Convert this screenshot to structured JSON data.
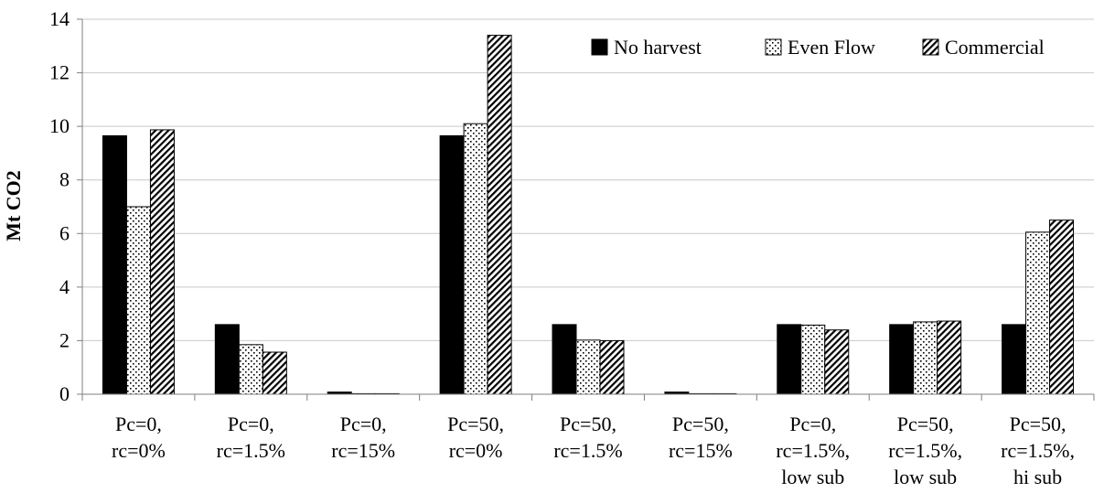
{
  "chart_data": {
    "type": "bar",
    "title": "",
    "xlabel": "",
    "ylabel": "Mt CO2",
    "ylim": [
      0,
      14
    ],
    "yticks": [
      0,
      2,
      4,
      6,
      8,
      10,
      12,
      14
    ],
    "grid": true,
    "legend_position": "top-right",
    "categories": [
      [
        "Pc=0,",
        "rc=0%"
      ],
      [
        "Pc=0,",
        "rc=1.5%"
      ],
      [
        "Pc=0,",
        "rc=15%"
      ],
      [
        "Pc=50,",
        "rc=0%"
      ],
      [
        "Pc=50,",
        "rc=1.5%"
      ],
      [
        "Pc=50,",
        "rc=15%"
      ],
      [
        "Pc=0,",
        "rc=1.5%,",
        "low sub"
      ],
      [
        "Pc=50,",
        "rc=1.5%,",
        "low sub"
      ],
      [
        "Pc=50,",
        "rc=1.5%,",
        "hi sub"
      ]
    ],
    "series": [
      {
        "name": "No harvest",
        "pattern": "solid",
        "color": "#000000",
        "values": [
          9.65,
          2.6,
          0.08,
          9.65,
          2.6,
          0.08,
          2.6,
          2.6,
          2.6
        ]
      },
      {
        "name": "Even Flow",
        "pattern": "dots",
        "color": "#000000",
        "values": [
          7.0,
          1.85,
          0.02,
          10.1,
          2.02,
          0.02,
          2.58,
          2.7,
          6.05
        ]
      },
      {
        "name": "Commercial",
        "pattern": "diagonal",
        "color": "#000000",
        "values": [
          9.87,
          1.57,
          0.02,
          13.4,
          2.0,
          0.02,
          2.4,
          2.73,
          6.5
        ]
      }
    ]
  }
}
